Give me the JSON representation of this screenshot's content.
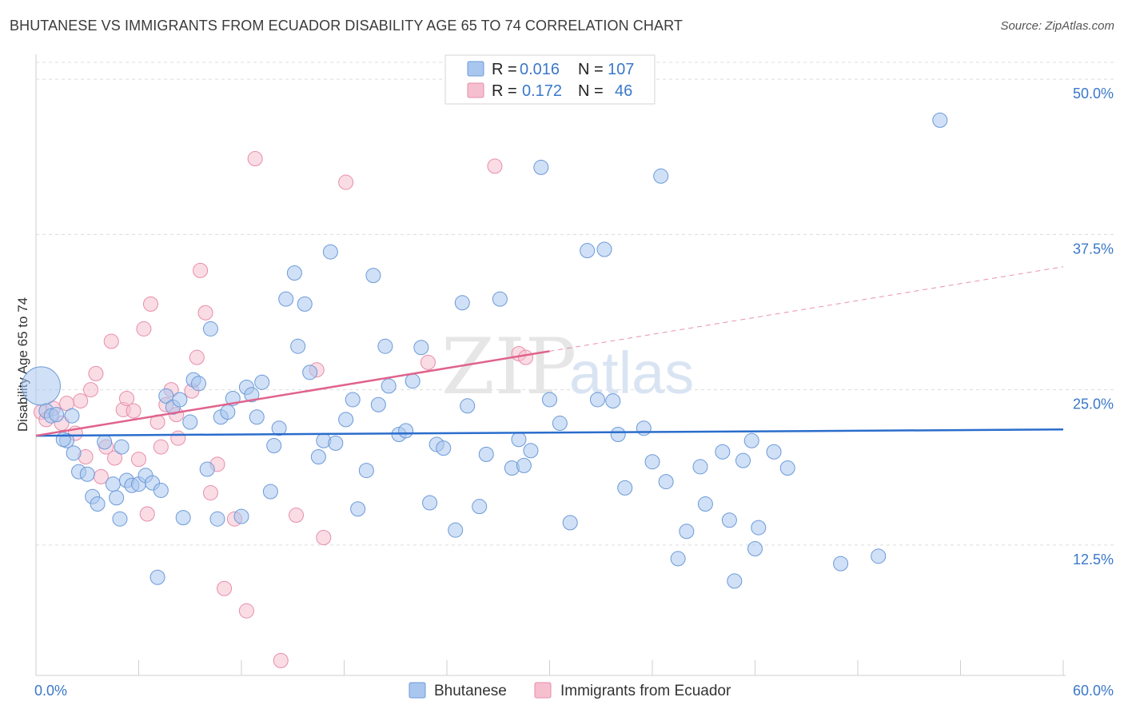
{
  "title": "BHUTANESE VS IMMIGRANTS FROM ECUADOR DISABILITY AGE 65 TO 74 CORRELATION CHART",
  "source": "Source: ZipAtlas.com",
  "watermark": {
    "zip": "ZIP",
    "atlas": "atlas"
  },
  "colors": {
    "blue_fill": "#a9c6ee",
    "blue_stroke": "#6c9ad8",
    "blue_line": "#2a6dcc",
    "pink_fill": "#f6bfd0",
    "pink_stroke": "#e78eaa",
    "pink_line": "#e0638c",
    "axis_label": "#3a78c9"
  },
  "legend": {
    "rows": [
      {
        "r_label": "R =",
        "r_value": "0.016",
        "n_label": "N =",
        "n_value": "107"
      },
      {
        "r_label": "R =",
        "r_value": "0.172",
        "n_label": "N =",
        "n_value": "46"
      }
    ]
  },
  "chart_data": {
    "type": "scatter",
    "title": "BHUTANESE VS IMMIGRANTS FROM ECUADOR DISABILITY AGE 65 TO 74 CORRELATION CHART",
    "xlabel": "",
    "ylabel": "Disability Age 65 to 74",
    "xlim": [
      0,
      60
    ],
    "ylim": [
      2,
      52
    ],
    "x_tick_labels": [
      {
        "value": 0,
        "label": "0.0%"
      },
      {
        "value": 60,
        "label": "60.0%"
      }
    ],
    "y_ticks": [
      {
        "value": 12.5,
        "label": "12.5%"
      },
      {
        "value": 25,
        "label": "25.0%"
      },
      {
        "value": 37.5,
        "label": "37.5%"
      },
      {
        "value": 50,
        "label": "50.0%"
      }
    ],
    "grid": true,
    "legend_placement": "top-center",
    "series": [
      {
        "name": "Bhutanese",
        "trend": {
          "x": [
            0,
            60
          ],
          "y": [
            21.3,
            21.8
          ],
          "style": "solid"
        },
        "points": [
          [
            0.3,
            25.3
          ],
          [
            0.6,
            23.3
          ],
          [
            0.9,
            22.9
          ],
          [
            1.2,
            23.0
          ],
          [
            1.8,
            20.9
          ],
          [
            2.1,
            22.9
          ],
          [
            1.6,
            21.0
          ],
          [
            2.2,
            19.9
          ],
          [
            2.5,
            18.4
          ],
          [
            3.0,
            18.2
          ],
          [
            3.3,
            16.4
          ],
          [
            3.6,
            15.8
          ],
          [
            4.0,
            20.8
          ],
          [
            4.5,
            17.4
          ],
          [
            4.7,
            16.3
          ],
          [
            4.9,
            14.6
          ],
          [
            5.0,
            20.4
          ],
          [
            5.3,
            17.7
          ],
          [
            5.6,
            17.3
          ],
          [
            6.0,
            17.4
          ],
          [
            6.4,
            18.1
          ],
          [
            6.8,
            17.5
          ],
          [
            7.1,
            9.9
          ],
          [
            7.3,
            16.9
          ],
          [
            7.6,
            24.5
          ],
          [
            8.0,
            23.6
          ],
          [
            8.4,
            24.2
          ],
          [
            8.6,
            14.7
          ],
          [
            9.0,
            22.4
          ],
          [
            9.2,
            25.8
          ],
          [
            9.5,
            25.5
          ],
          [
            10.0,
            18.6
          ],
          [
            10.2,
            29.9
          ],
          [
            10.6,
            14.6
          ],
          [
            10.8,
            22.8
          ],
          [
            11.2,
            23.2
          ],
          [
            11.5,
            24.3
          ],
          [
            12.0,
            14.8
          ],
          [
            12.3,
            25.2
          ],
          [
            12.6,
            24.6
          ],
          [
            12.9,
            22.8
          ],
          [
            13.2,
            25.6
          ],
          [
            13.7,
            16.8
          ],
          [
            13.9,
            20.5
          ],
          [
            14.2,
            21.9
          ],
          [
            14.6,
            32.3
          ],
          [
            15.1,
            34.4
          ],
          [
            15.3,
            28.5
          ],
          [
            15.7,
            31.9
          ],
          [
            16.0,
            26.4
          ],
          [
            16.5,
            19.6
          ],
          [
            16.8,
            20.9
          ],
          [
            17.2,
            36.1
          ],
          [
            17.5,
            20.7
          ],
          [
            18.1,
            22.6
          ],
          [
            18.5,
            24.2
          ],
          [
            18.8,
            15.4
          ],
          [
            19.3,
            18.5
          ],
          [
            19.7,
            34.2
          ],
          [
            20.0,
            23.8
          ],
          [
            20.4,
            28.5
          ],
          [
            20.6,
            25.3
          ],
          [
            21.2,
            21.4
          ],
          [
            21.6,
            21.7
          ],
          [
            22.0,
            25.7
          ],
          [
            22.5,
            28.4
          ],
          [
            23.0,
            15.9
          ],
          [
            23.4,
            20.6
          ],
          [
            23.8,
            20.3
          ],
          [
            24.5,
            13.7
          ],
          [
            24.9,
            32.0
          ],
          [
            25.2,
            23.7
          ],
          [
            25.9,
            15.6
          ],
          [
            26.3,
            19.8
          ],
          [
            27.1,
            32.3
          ],
          [
            27.8,
            18.7
          ],
          [
            28.2,
            21.0
          ],
          [
            28.5,
            18.9
          ],
          [
            28.9,
            20.1
          ],
          [
            29.5,
            42.9
          ],
          [
            30.0,
            24.2
          ],
          [
            30.6,
            22.3
          ],
          [
            31.2,
            14.3
          ],
          [
            32.2,
            36.2
          ],
          [
            32.8,
            24.2
          ],
          [
            33.2,
            36.3
          ],
          [
            33.7,
            24.1
          ],
          [
            34.0,
            21.4
          ],
          [
            34.4,
            17.1
          ],
          [
            35.5,
            21.9
          ],
          [
            36.0,
            19.2
          ],
          [
            36.5,
            42.2
          ],
          [
            36.8,
            17.6
          ],
          [
            37.5,
            11.4
          ],
          [
            38.0,
            13.6
          ],
          [
            38.8,
            18.8
          ],
          [
            39.1,
            15.8
          ],
          [
            40.1,
            20.0
          ],
          [
            40.5,
            14.5
          ],
          [
            40.8,
            9.6
          ],
          [
            41.3,
            19.3
          ],
          [
            41.8,
            20.9
          ],
          [
            42.0,
            12.2
          ],
          [
            42.2,
            13.9
          ],
          [
            43.1,
            20.0
          ],
          [
            43.9,
            18.7
          ],
          [
            47.0,
            11.0
          ],
          [
            49.2,
            11.6
          ],
          [
            52.8,
            46.7
          ]
        ]
      },
      {
        "name": "Immigrants from Ecuador",
        "trend": {
          "x": [
            0,
            30
          ],
          "y": [
            21.3,
            28.1
          ],
          "style": "solid",
          "dashed_extension": {
            "x": [
              30,
              60
            ],
            "y": [
              28.1,
              34.9
            ]
          }
        },
        "points": [
          [
            0.3,
            23.2
          ],
          [
            0.6,
            22.6
          ],
          [
            1.0,
            23.5
          ],
          [
            1.5,
            22.3
          ],
          [
            1.8,
            23.9
          ],
          [
            2.3,
            21.5
          ],
          [
            2.6,
            24.1
          ],
          [
            2.9,
            19.6
          ],
          [
            3.2,
            25.0
          ],
          [
            3.5,
            26.3
          ],
          [
            3.8,
            18.0
          ],
          [
            4.1,
            20.4
          ],
          [
            4.4,
            28.9
          ],
          [
            4.6,
            19.5
          ],
          [
            5.1,
            23.4
          ],
          [
            5.3,
            24.3
          ],
          [
            5.7,
            23.3
          ],
          [
            6.0,
            19.4
          ],
          [
            6.3,
            29.9
          ],
          [
            6.5,
            15.0
          ],
          [
            6.7,
            31.9
          ],
          [
            7.1,
            22.4
          ],
          [
            7.3,
            20.4
          ],
          [
            7.6,
            23.8
          ],
          [
            7.9,
            25.0
          ],
          [
            8.2,
            23.0
          ],
          [
            8.3,
            21.1
          ],
          [
            9.1,
            24.9
          ],
          [
            9.4,
            27.6
          ],
          [
            9.6,
            34.6
          ],
          [
            9.9,
            31.2
          ],
          [
            10.2,
            16.7
          ],
          [
            10.6,
            19.0
          ],
          [
            11.0,
            9.0
          ],
          [
            11.6,
            14.6
          ],
          [
            12.3,
            7.2
          ],
          [
            12.8,
            43.6
          ],
          [
            14.3,
            3.2
          ],
          [
            15.2,
            14.9
          ],
          [
            16.4,
            26.6
          ],
          [
            16.8,
            13.1
          ],
          [
            18.1,
            41.7
          ],
          [
            22.9,
            27.2
          ],
          [
            26.8,
            43.0
          ],
          [
            28.2,
            27.9
          ],
          [
            28.6,
            27.6
          ]
        ]
      }
    ]
  },
  "bottom_legend": [
    {
      "label": "Bhutanese"
    },
    {
      "label": "Immigrants from Ecuador"
    }
  ]
}
